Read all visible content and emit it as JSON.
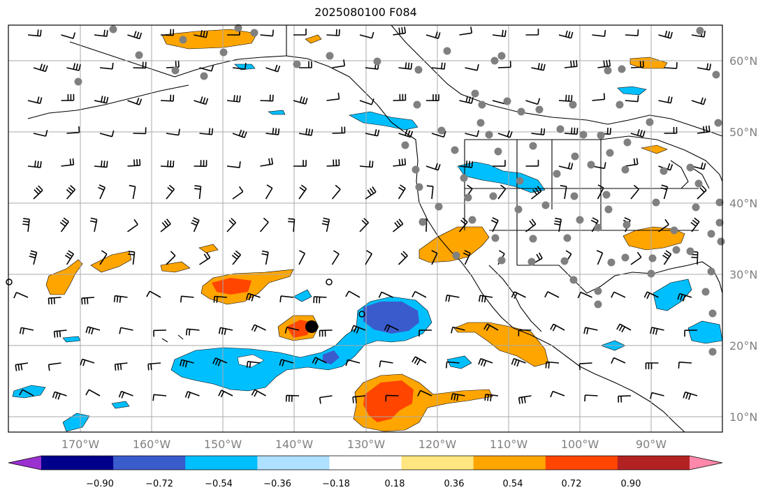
{
  "title": "2025080100 F084",
  "lat_labels": [
    "60°N",
    "50°N",
    "40°N",
    "30°N",
    "20°N",
    "10°N"
  ],
  "lon_labels": [
    "170°W",
    "160°W",
    "150°W",
    "140°W",
    "130°W",
    "120°W",
    "110°W",
    "100°W",
    "90°W"
  ],
  "colorbar": {
    "tick_labels": [
      "−0.90",
      "−0.72",
      "−0.54",
      "−0.36",
      "−0.18",
      "0.18",
      "0.36",
      "0.54",
      "0.72",
      "0.90"
    ],
    "colors": [
      "#9b30d0",
      "#00008b",
      "#3a5bcc",
      "#00bfff",
      "#aee0ff",
      "#ffffff",
      "#ffe680",
      "#ffa500",
      "#ff4500",
      "#b22222",
      "#ff88aa"
    ]
  },
  "colors": {
    "ocean": "#ffffff",
    "coast": "#000000",
    "grid": "#aaaaaa",
    "station_dot": "#808080"
  }
}
